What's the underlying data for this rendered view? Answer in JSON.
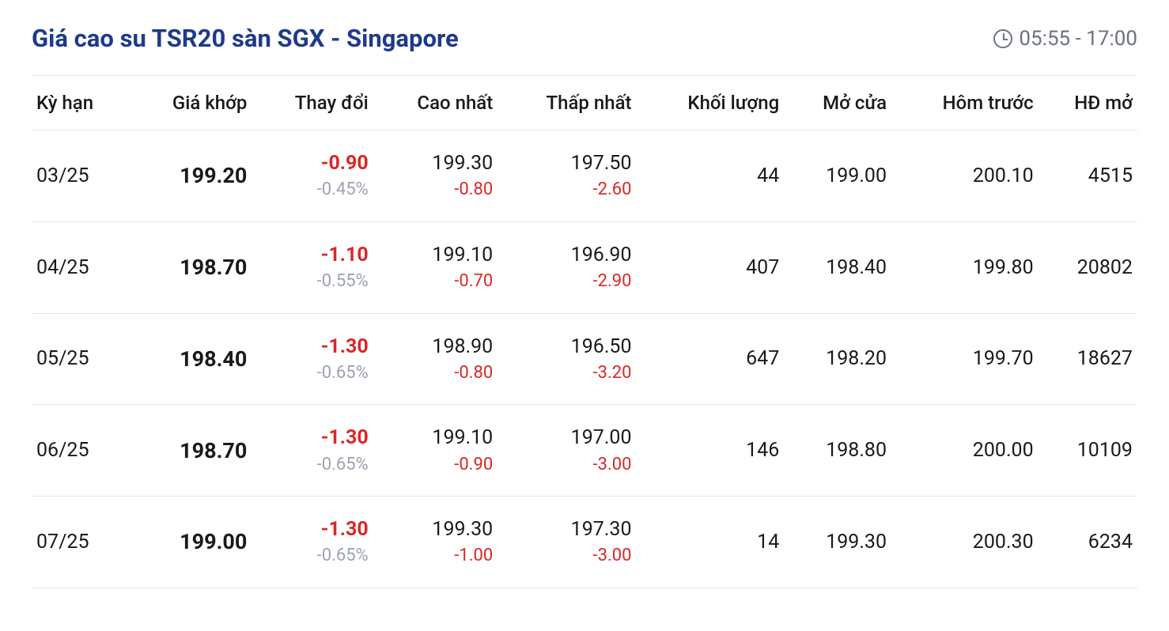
{
  "colors": {
    "title": "#1e3a8a",
    "text": "#1a1a1a",
    "muted": "#9ca3af",
    "negative": "#dc2626",
    "border": "#e5e7eb",
    "background": "#ffffff",
    "time": "#6b7280"
  },
  "title": "Giá cao su TSR20 sàn SGX - Singapore",
  "time_range": "05:55 - 17:00",
  "table": {
    "type": "table",
    "columns": [
      {
        "key": "ky_han",
        "label": "Kỳ hạn",
        "align": "left"
      },
      {
        "key": "gia_khop",
        "label": "Giá khớp",
        "align": "right"
      },
      {
        "key": "thay_doi",
        "label": "Thay đổi",
        "align": "right"
      },
      {
        "key": "cao_nhat",
        "label": "Cao nhất",
        "align": "right"
      },
      {
        "key": "thap_nhat",
        "label": "Thấp nhất",
        "align": "right"
      },
      {
        "key": "khoi_luong",
        "label": "Khối lượng",
        "align": "right"
      },
      {
        "key": "mo_cua",
        "label": "Mở cửa",
        "align": "right"
      },
      {
        "key": "hom_truoc",
        "label": "Hôm trước",
        "align": "right"
      },
      {
        "key": "hd_mo",
        "label": "HĐ mở",
        "align": "right"
      }
    ],
    "rows": [
      {
        "ky_han": "03/25",
        "gia_khop": "199.20",
        "thay_doi_abs": "-0.90",
        "thay_doi_pct": "-0.45%",
        "thay_doi_dir": "neg",
        "cao_nhat": "199.30",
        "cao_nhat_diff": "-0.80",
        "cao_nhat_dir": "neg",
        "thap_nhat": "197.50",
        "thap_nhat_diff": "-2.60",
        "thap_nhat_dir": "neg",
        "khoi_luong": "44",
        "mo_cua": "199.00",
        "hom_truoc": "200.10",
        "hd_mo": "4515"
      },
      {
        "ky_han": "04/25",
        "gia_khop": "198.70",
        "thay_doi_abs": "-1.10",
        "thay_doi_pct": "-0.55%",
        "thay_doi_dir": "neg",
        "cao_nhat": "199.10",
        "cao_nhat_diff": "-0.70",
        "cao_nhat_dir": "neg",
        "thap_nhat": "196.90",
        "thap_nhat_diff": "-2.90",
        "thap_nhat_dir": "neg",
        "khoi_luong": "407",
        "mo_cua": "198.40",
        "hom_truoc": "199.80",
        "hd_mo": "20802"
      },
      {
        "ky_han": "05/25",
        "gia_khop": "198.40",
        "thay_doi_abs": "-1.30",
        "thay_doi_pct": "-0.65%",
        "thay_doi_dir": "neg",
        "cao_nhat": "198.90",
        "cao_nhat_diff": "-0.80",
        "cao_nhat_dir": "neg",
        "thap_nhat": "196.50",
        "thap_nhat_diff": "-3.20",
        "thap_nhat_dir": "neg",
        "khoi_luong": "647",
        "mo_cua": "198.20",
        "hom_truoc": "199.70",
        "hd_mo": "18627"
      },
      {
        "ky_han": "06/25",
        "gia_khop": "198.70",
        "thay_doi_abs": "-1.30",
        "thay_doi_pct": "-0.65%",
        "thay_doi_dir": "neg",
        "cao_nhat": "199.10",
        "cao_nhat_diff": "-0.90",
        "cao_nhat_dir": "neg",
        "thap_nhat": "197.00",
        "thap_nhat_diff": "-3.00",
        "thap_nhat_dir": "neg",
        "khoi_luong": "146",
        "mo_cua": "198.80",
        "hom_truoc": "200.00",
        "hd_mo": "10109"
      },
      {
        "ky_han": "07/25",
        "gia_khop": "199.00",
        "thay_doi_abs": "-1.30",
        "thay_doi_pct": "-0.65%",
        "thay_doi_dir": "neg",
        "cao_nhat": "199.30",
        "cao_nhat_diff": "-1.00",
        "cao_nhat_dir": "neg",
        "thap_nhat": "197.30",
        "thap_nhat_diff": "-3.00",
        "thap_nhat_dir": "neg",
        "khoi_luong": "14",
        "mo_cua": "199.30",
        "hom_truoc": "200.30",
        "hd_mo": "6234"
      }
    ]
  }
}
